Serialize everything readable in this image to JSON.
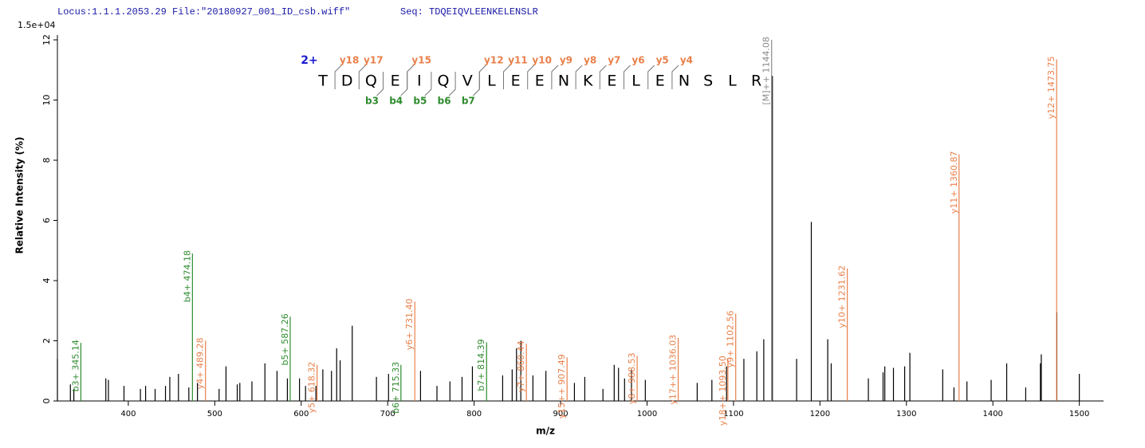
{
  "chart_data": {
    "type": "spectrum",
    "header_locus": "Locus:1.1.1.2053.29 File:\"20180927_001_ID_csb.wiff\"",
    "header_seq": "Seq: TDQEIQVLEENKELENSLR",
    "scale_label": "1.5e+04",
    "y_label": "Relative   Intensity (%)",
    "x_label": "m/z",
    "xlim": [
      318,
      1528
    ],
    "ylim": [
      0,
      12
    ],
    "xticks": [
      400,
      500,
      600,
      700,
      800,
      900,
      1000,
      1100,
      1200,
      1300,
      1400,
      1500
    ],
    "yticks": [
      0,
      2,
      4,
      6,
      8,
      10,
      12
    ],
    "peak_color": "#000000",
    "peaks": {
      "x": [
        318,
        333,
        337,
        374,
        377,
        395,
        414,
        420,
        431,
        443,
        448,
        458,
        470,
        480,
        505,
        513,
        526,
        529,
        543,
        558,
        572,
        584,
        598,
        605,
        617,
        625,
        635,
        641,
        645,
        659,
        687,
        701,
        738,
        757,
        772,
        786,
        798,
        833,
        844,
        849,
        854,
        868,
        883,
        916,
        928,
        949,
        962,
        967,
        974,
        982,
        998,
        1058,
        1075,
        1092,
        1112,
        1127,
        1135,
        1145,
        1173,
        1190,
        1209,
        1213,
        1256,
        1273,
        1275,
        1285,
        1298,
        1304,
        1342,
        1355,
        1370,
        1398,
        1416,
        1438,
        1455,
        1456,
        1474,
        1500
      ],
      "values": [
        1.4,
        0.55,
        0.4,
        0.75,
        0.7,
        0.5,
        0.4,
        0.5,
        0.4,
        0.5,
        0.8,
        0.9,
        0.45,
        0.6,
        0.4,
        1.15,
        0.55,
        0.6,
        0.65,
        1.25,
        1.0,
        0.75,
        0.75,
        0.5,
        0.5,
        1.05,
        1.0,
        1.75,
        1.35,
        2.5,
        0.8,
        0.9,
        1.0,
        0.5,
        0.65,
        0.8,
        1.15,
        0.85,
        1.05,
        1.75,
        2.0,
        0.85,
        1.0,
        0.6,
        0.8,
        0.4,
        1.2,
        1.1,
        0.75,
        1.05,
        0.7,
        0.6,
        0.7,
        1.15,
        1.4,
        1.65,
        2.05,
        10.8,
        1.4,
        5.95,
        2.05,
        1.25,
        0.75,
        0.95,
        1.15,
        1.1,
        1.15,
        1.6,
        1.05,
        0.45,
        0.65,
        0.7,
        1.25,
        0.45,
        1.25,
        1.55,
        2.95,
        0.9
      ]
    },
    "ions": [
      {
        "label": "b3+ 345.14",
        "mz": 345.14,
        "intensity": 1.93,
        "color": "#2e8b2e"
      },
      {
        "label": "b4+ 474.18",
        "mz": 474.18,
        "intensity": 4.9,
        "color": "#2e8b2e"
      },
      {
        "label": "y4+ 489.28",
        "mz": 489.28,
        "intensity": 2.0,
        "color": "#e8804a"
      },
      {
        "label": "b5+ 587.26",
        "mz": 587.26,
        "intensity": 2.8,
        "color": "#2e8b2e"
      },
      {
        "label": "y5+ 618.32",
        "mz": 618.32,
        "intensity": 1.2,
        "color": "#e8804a"
      },
      {
        "label": "b6+ 715.33",
        "mz": 715.33,
        "intensity": 1.2,
        "color": "#2e8b2e"
      },
      {
        "label": "y6+ 731.40",
        "mz": 731.4,
        "intensity": 3.3,
        "color": "#e8804a"
      },
      {
        "label": "b7+ 814.39",
        "mz": 814.39,
        "intensity": 1.95,
        "color": "#2e8b2e"
      },
      {
        "label": "y7+ 860.44",
        "mz": 860.44,
        "intensity": 1.9,
        "color": "#e8804a"
      },
      {
        "label": "y15++ 907.49",
        "mz": 907.49,
        "intensity": 1.45,
        "color": "#e8804a"
      },
      {
        "label": "y8+ 988.53",
        "mz": 988.53,
        "intensity": 1.5,
        "color": "#e8804a"
      },
      {
        "label": "y17++ 1036.03",
        "mz": 1036.03,
        "intensity": 2.1,
        "color": "#e8804a"
      },
      {
        "label": "y18++ 1093.50",
        "mz": 1093.5,
        "intensity": 1.4,
        "color": "#e8804a"
      },
      {
        "label": "y9+ 1102.56",
        "mz": 1102.56,
        "intensity": 2.9,
        "color": "#e8804a"
      },
      {
        "label": "[M]++ 1144.08",
        "mz": 1144.08,
        "intensity": 12,
        "color": "#8a8a8a"
      },
      {
        "label": "y10+ 1231.62",
        "mz": 1231.62,
        "intensity": 4.4,
        "color": "#e8804a"
      },
      {
        "label": "y11+ 1360.87",
        "mz": 1360.87,
        "intensity": 8.2,
        "color": "#e8804a"
      },
      {
        "label": "y12+ 1473.75",
        "mz": 1473.75,
        "intensity": 11.35,
        "color": "#e8804a"
      }
    ],
    "charge": "2+",
    "sequence": [
      "T",
      "D",
      "Q",
      "E",
      "I",
      "Q",
      "V",
      "L",
      "E",
      "E",
      "N",
      "K",
      "E",
      "L",
      "E",
      "N",
      "S",
      "L",
      "R"
    ],
    "y_ions": [
      "y18",
      "y17",
      "y15",
      "y12",
      "y11",
      "y10",
      "y9",
      "y8",
      "y7",
      "y6",
      "y5",
      "y4"
    ],
    "b_ions": [
      "b3",
      "b4",
      "b5",
      "b6",
      "b7"
    ]
  }
}
